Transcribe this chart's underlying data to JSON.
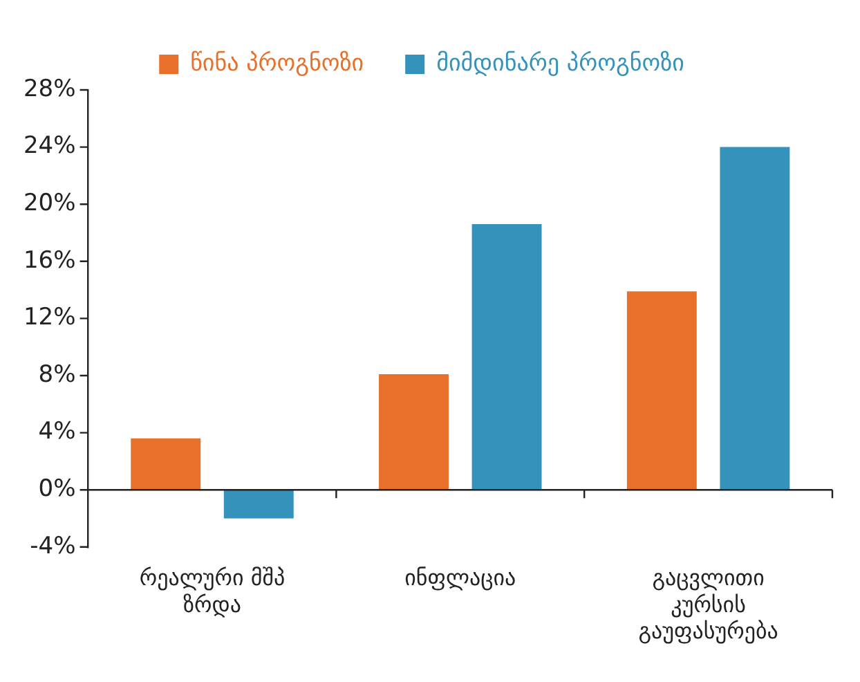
{
  "chart_data": {
    "type": "bar",
    "categories": [
      "რეალური მშპ ზრდა",
      "ინფლაცია",
      "გაცვლითი კურსის გაუფასურება"
    ],
    "series": [
      {
        "name": "წინა პროგნოზი",
        "color": "#e8702a",
        "values": [
          3.6,
          8.1,
          13.9
        ]
      },
      {
        "name": "მიმდინარე პროგნოზი",
        "color": "#3592bb",
        "values": [
          -2.0,
          18.6,
          24.0
        ]
      }
    ],
    "ylim": [
      -4,
      28
    ],
    "yticks": [
      {
        "value": -4,
        "label": "-4%"
      },
      {
        "value": 0,
        "label": "0%"
      },
      {
        "value": 4,
        "label": "4%"
      },
      {
        "value": 8,
        "label": "8%"
      },
      {
        "value": 12,
        "label": "12%"
      },
      {
        "value": 16,
        "label": "16%"
      },
      {
        "value": 20,
        "label": "20%"
      },
      {
        "value": 24,
        "label": "24%"
      },
      {
        "value": 28,
        "label": "28%"
      }
    ],
    "legend": "top"
  }
}
